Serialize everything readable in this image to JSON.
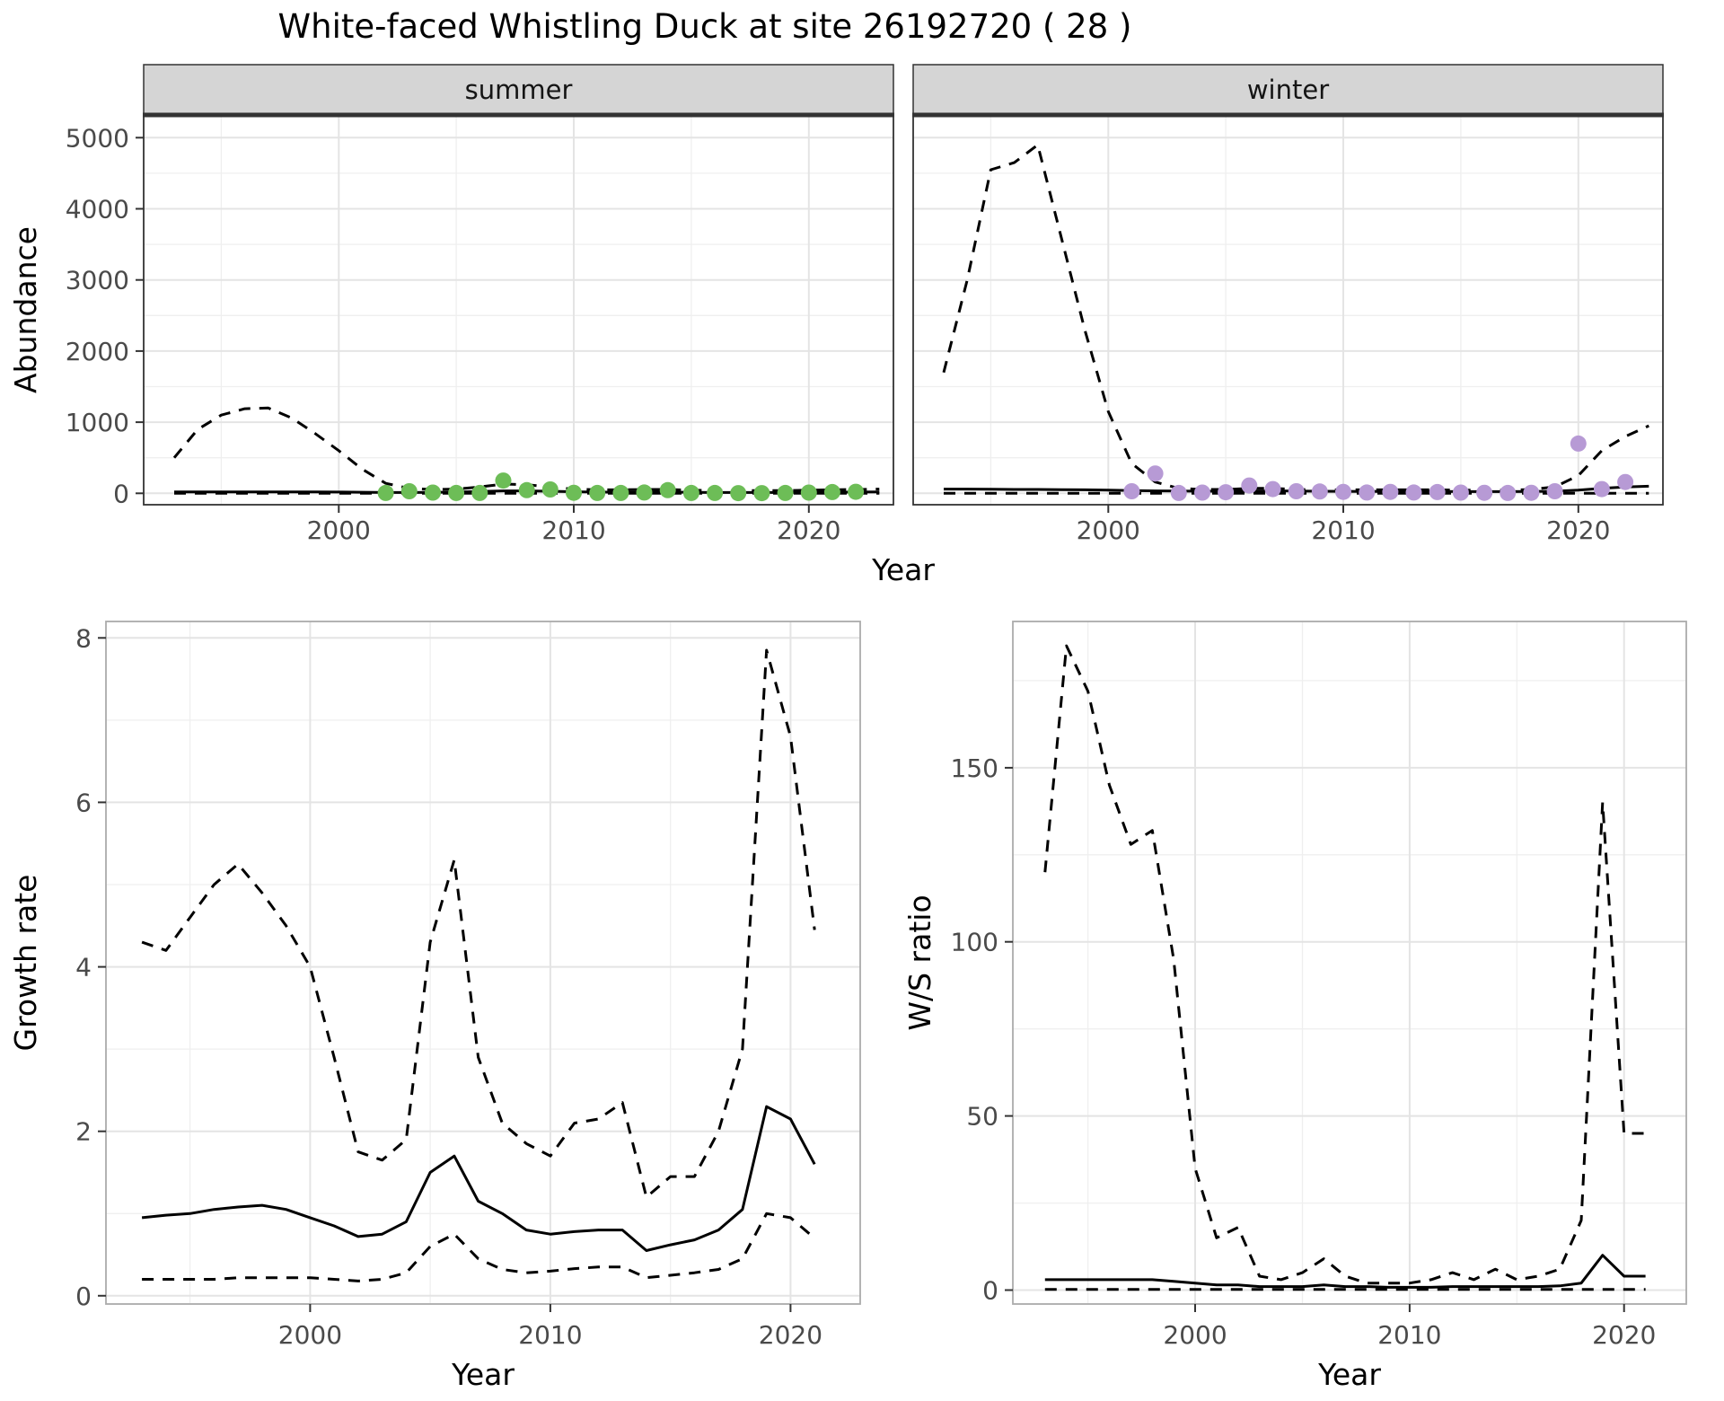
{
  "title": "White-faced Whistling Duck at site 26192720 ( 28 )",
  "colors": {
    "summer_points": "#6dbd57",
    "winter_points": "#b79ad5",
    "line": "#000000",
    "strip_bg": "#d5d5d5",
    "strip_text": "#151515",
    "grid_major": "#e4e4e4",
    "grid_minor": "#efefef",
    "border_dark": "#333333",
    "border_light": "#ababab",
    "tick": "#333333",
    "tick_text": "#4a4a4a"
  },
  "chart_data": [
    {
      "id": "abundance",
      "type": "line",
      "xlabel": "Year",
      "ylabel": "Abundance",
      "xlim": [
        1991.7,
        2023.6
      ],
      "ylim": [
        -160,
        5320
      ],
      "xticks": [
        2000,
        2010,
        2020
      ],
      "yticks": [
        0,
        1000,
        2000,
        3000,
        4000,
        5000
      ],
      "legend": "none",
      "grid": true,
      "facets": [
        {
          "label": "summer",
          "series": [
            {
              "name": "upper-ci",
              "style": "dashed",
              "x": [
                1993,
                1994,
                1995,
                1996,
                1997,
                1998,
                1999,
                2000,
                2001,
                2002,
                2003,
                2004,
                2005,
                2006,
                2007,
                2008,
                2009,
                2010,
                2011,
                2012,
                2013,
                2014,
                2015,
                2016,
                2017,
                2018,
                2019,
                2020,
                2021,
                2022,
                2023
              ],
              "y": [
                500,
                900,
                1100,
                1190,
                1200,
                1060,
                840,
                600,
                340,
                140,
                70,
                55,
                60,
                90,
                130,
                120,
                90,
                60,
                50,
                50,
                55,
                55,
                45,
                40,
                40,
                40,
                40,
                45,
                50,
                55,
                60
              ]
            },
            {
              "name": "lower-ci",
              "style": "dashed",
              "x": [
                1993,
                1994,
                1995,
                1996,
                1997,
                1998,
                1999,
                2000,
                2001,
                2002,
                2003,
                2004,
                2005,
                2006,
                2007,
                2008,
                2009,
                2010,
                2011,
                2012,
                2013,
                2014,
                2015,
                2016,
                2017,
                2018,
                2019,
                2020,
                2021,
                2022,
                2023
              ],
              "y": [
                0,
                0,
                0,
                0,
                0,
                0,
                0,
                0,
                0,
                0,
                0,
                0,
                0,
                0,
                0,
                0,
                0,
                0,
                0,
                0,
                0,
                0,
                0,
                0,
                0,
                0,
                0,
                0,
                0,
                0,
                0
              ]
            },
            {
              "name": "model-fit",
              "style": "solid",
              "x": [
                1993,
                1994,
                1995,
                1996,
                1997,
                1998,
                1999,
                2000,
                2001,
                2002,
                2003,
                2004,
                2005,
                2006,
                2007,
                2008,
                2009,
                2010,
                2011,
                2012,
                2013,
                2014,
                2015,
                2016,
                2017,
                2018,
                2019,
                2020,
                2021,
                2022,
                2023
              ],
              "y": [
                20,
                20,
                20,
                20,
                20,
                20,
                20,
                18,
                15,
                12,
                12,
                14,
                18,
                25,
                35,
                35,
                30,
                22,
                18,
                16,
                16,
                18,
                14,
                12,
                12,
                12,
                12,
                14,
                16,
                18,
                20
              ]
            }
          ],
          "points": {
            "name": "observed-counts-summer",
            "color": "#6dbd57",
            "x": [
              2002,
              2003,
              2004,
              2005,
              2006,
              2007,
              2008,
              2009,
              2010,
              2011,
              2012,
              2013,
              2014,
              2015,
              2016,
              2017,
              2018,
              2019,
              2020,
              2021,
              2022
            ],
            "y": [
              5,
              30,
              10,
              5,
              5,
              180,
              45,
              55,
              8,
              5,
              5,
              12,
              45,
              5,
              5,
              3,
              3,
              5,
              10,
              18,
              22
            ]
          }
        },
        {
          "label": "winter",
          "series": [
            {
              "name": "upper-ci",
              "style": "dashed",
              "x": [
                1993,
                1994,
                1995,
                1996,
                1997,
                1998,
                1999,
                2000,
                2001,
                2002,
                2003,
                2004,
                2005,
                2006,
                2007,
                2008,
                2009,
                2010,
                2011,
                2012,
                2013,
                2014,
                2015,
                2016,
                2017,
                2018,
                2019,
                2020,
                2021,
                2022,
                2023
              ],
              "y": [
                1700,
                3000,
                4550,
                4650,
                4900,
                3600,
                2300,
                1150,
                420,
                160,
                70,
                55,
                55,
                70,
                70,
                55,
                50,
                50,
                50,
                50,
                50,
                50,
                45,
                45,
                45,
                55,
                90,
                250,
                600,
                800,
                950
              ]
            },
            {
              "name": "lower-ci",
              "style": "dashed",
              "x": [
                1993,
                1994,
                1995,
                1996,
                1997,
                1998,
                1999,
                2000,
                2001,
                2002,
                2003,
                2004,
                2005,
                2006,
                2007,
                2008,
                2009,
                2010,
                2011,
                2012,
                2013,
                2014,
                2015,
                2016,
                2017,
                2018,
                2019,
                2020,
                2021,
                2022,
                2023
              ],
              "y": [
                0,
                0,
                0,
                0,
                0,
                0,
                0,
                0,
                0,
                0,
                0,
                0,
                0,
                0,
                0,
                0,
                0,
                0,
                0,
                0,
                0,
                0,
                0,
                0,
                0,
                0,
                0,
                0,
                0,
                0,
                0
              ]
            },
            {
              "name": "model-fit",
              "style": "solid",
              "x": [
                1993,
                1994,
                1995,
                1996,
                1997,
                1998,
                1999,
                2000,
                2001,
                2002,
                2003,
                2004,
                2005,
                2006,
                2007,
                2008,
                2009,
                2010,
                2011,
                2012,
                2013,
                2014,
                2015,
                2016,
                2017,
                2018,
                2019,
                2020,
                2021,
                2022,
                2023
              ],
              "y": [
                60,
                60,
                58,
                55,
                55,
                52,
                50,
                45,
                40,
                35,
                32,
                30,
                30,
                32,
                35,
                33,
                30,
                28,
                26,
                25,
                25,
                25,
                24,
                24,
                24,
                26,
                30,
                45,
                70,
                90,
                100
              ]
            }
          ],
          "points": {
            "name": "observed-counts-winter",
            "color": "#b79ad5",
            "x": [
              2001,
              2002,
              2003,
              2004,
              2005,
              2006,
              2007,
              2008,
              2009,
              2010,
              2011,
              2012,
              2013,
              2014,
              2015,
              2016,
              2017,
              2018,
              2019,
              2020,
              2021,
              2022
            ],
            "y": [
              30,
              280,
              5,
              10,
              15,
              110,
              60,
              30,
              25,
              20,
              12,
              20,
              12,
              18,
              10,
              8,
              5,
              8,
              30,
              700,
              60,
              160
            ]
          }
        }
      ]
    },
    {
      "id": "growth-rate",
      "type": "line",
      "xlabel": "Year",
      "ylabel": "Growth rate",
      "xlim": [
        1991.5,
        2022.9
      ],
      "ylim": [
        -0.1,
        8.2
      ],
      "xticks": [
        2000,
        2010,
        2020
      ],
      "yticks": [
        0,
        2,
        4,
        6,
        8
      ],
      "legend": "none",
      "grid": true,
      "series": [
        {
          "name": "upper-ci",
          "style": "dashed",
          "x": [
            1993,
            1994,
            1995,
            1996,
            1997,
            1998,
            1999,
            2000,
            2001,
            2002,
            2003,
            2004,
            2005,
            2006,
            2007,
            2008,
            2009,
            2010,
            2011,
            2012,
            2013,
            2014,
            2015,
            2016,
            2017,
            2018,
            2019,
            2020,
            2021
          ],
          "y": [
            4.3,
            4.2,
            4.6,
            5.0,
            5.25,
            4.9,
            4.5,
            4.0,
            2.9,
            1.75,
            1.65,
            1.9,
            4.3,
            5.3,
            2.9,
            2.1,
            1.85,
            1.7,
            2.1,
            2.15,
            2.35,
            1.2,
            1.45,
            1.45,
            2.0,
            3.0,
            7.85,
            6.8,
            4.45
          ]
        },
        {
          "name": "lower-ci",
          "style": "dashed",
          "x": [
            1993,
            1994,
            1995,
            1996,
            1997,
            1998,
            1999,
            2000,
            2001,
            2002,
            2003,
            2004,
            2005,
            2006,
            2007,
            2008,
            2009,
            2010,
            2011,
            2012,
            2013,
            2014,
            2015,
            2016,
            2017,
            2018,
            2019,
            2020,
            2021
          ],
          "y": [
            0.2,
            0.2,
            0.2,
            0.2,
            0.22,
            0.22,
            0.22,
            0.22,
            0.2,
            0.18,
            0.2,
            0.28,
            0.6,
            0.75,
            0.45,
            0.32,
            0.28,
            0.3,
            0.33,
            0.35,
            0.35,
            0.22,
            0.25,
            0.28,
            0.32,
            0.45,
            1.0,
            0.95,
            0.7
          ]
        },
        {
          "name": "model-fit",
          "style": "solid",
          "x": [
            1993,
            1994,
            1995,
            1996,
            1997,
            1998,
            1999,
            2000,
            2001,
            2002,
            2003,
            2004,
            2005,
            2006,
            2007,
            2008,
            2009,
            2010,
            2011,
            2012,
            2013,
            2014,
            2015,
            2016,
            2017,
            2018,
            2019,
            2020,
            2021
          ],
          "y": [
            0.95,
            0.98,
            1.0,
            1.05,
            1.08,
            1.1,
            1.05,
            0.95,
            0.85,
            0.72,
            0.75,
            0.9,
            1.5,
            1.7,
            1.15,
            1.0,
            0.8,
            0.75,
            0.78,
            0.8,
            0.8,
            0.55,
            0.62,
            0.68,
            0.8,
            1.05,
            2.3,
            2.15,
            1.6
          ]
        }
      ]
    },
    {
      "id": "ws-ratio",
      "type": "line",
      "xlabel": "Year",
      "ylabel": "W/S ratio",
      "xlim": [
        1991.5,
        2022.9
      ],
      "ylim": [
        -4,
        192
      ],
      "xticks": [
        2000,
        2010,
        2020
      ],
      "yticks": [
        0,
        50,
        100,
        150
      ],
      "legend": "none",
      "grid": true,
      "series": [
        {
          "name": "upper-ci",
          "style": "dashed",
          "x": [
            1993,
            1994,
            1995,
            1996,
            1997,
            1998,
            1999,
            2000,
            2001,
            2002,
            2003,
            2004,
            2005,
            2006,
            2007,
            2008,
            2009,
            2010,
            2011,
            2012,
            2013,
            2014,
            2015,
            2016,
            2017,
            2018,
            2019,
            2020,
            2021
          ],
          "y": [
            120,
            185,
            172,
            145,
            128,
            132,
            95,
            35,
            15,
            18,
            4,
            3,
            5,
            9,
            4,
            2,
            2,
            2,
            3,
            5,
            3,
            6,
            3,
            4,
            6,
            20,
            140,
            45,
            45
          ]
        },
        {
          "name": "lower-ci",
          "style": "dashed",
          "x": [
            1993,
            1994,
            1995,
            1996,
            1997,
            1998,
            1999,
            2000,
            2001,
            2002,
            2003,
            2004,
            2005,
            2006,
            2007,
            2008,
            2009,
            2010,
            2011,
            2012,
            2013,
            2014,
            2015,
            2016,
            2017,
            2018,
            2019,
            2020,
            2021
          ],
          "y": [
            0.2,
            0.2,
            0.2,
            0.2,
            0.2,
            0.2,
            0.2,
            0.2,
            0.2,
            0.2,
            0.2,
            0.2,
            0.2,
            0.2,
            0.2,
            0.2,
            0.2,
            0.2,
            0.2,
            0.2,
            0.2,
            0.2,
            0.2,
            0.2,
            0.2,
            0.2,
            0.2,
            0.2,
            0.2
          ]
        },
        {
          "name": "model-fit",
          "style": "solid",
          "x": [
            1993,
            1994,
            1995,
            1996,
            1997,
            1998,
            1999,
            2000,
            2001,
            2002,
            2003,
            2004,
            2005,
            2006,
            2007,
            2008,
            2009,
            2010,
            2011,
            2012,
            2013,
            2014,
            2015,
            2016,
            2017,
            2018,
            2019,
            2020,
            2021
          ],
          "y": [
            3,
            3,
            3,
            3,
            3,
            3,
            2.5,
            2,
            1.5,
            1.5,
            1,
            1,
            1,
            1.5,
            1,
            1,
            0.8,
            0.8,
            0.8,
            1,
            1,
            1,
            1,
            1,
            1.2,
            2,
            10,
            4,
            4
          ]
        }
      ]
    }
  ]
}
